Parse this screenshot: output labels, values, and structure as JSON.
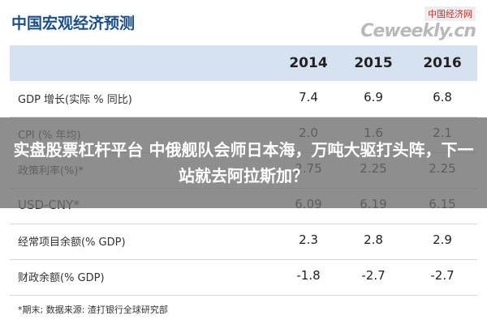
{
  "header": {
    "title": "中国宏观经济预测",
    "watermark_top": "中国经济网",
    "watermark": "Ceweekly.cn"
  },
  "table": {
    "columns": [
      "2014",
      "2015",
      "2016"
    ],
    "rows": [
      [
        "GDP 增长(实际 % 同比)",
        "7.4",
        "6.9",
        "6.8"
      ],
      [
        "CPI (% 年均)",
        "2.0",
        "1.6",
        "2.1"
      ],
      [
        "政策利率(%)*",
        "2.75",
        "2.25",
        "2.25"
      ],
      [
        "USD-CNY*",
        "6.09",
        "6.19",
        "6.15"
      ],
      [
        "经常项目余额(% GDP)",
        "2.3",
        "2.8",
        "2.9"
      ],
      [
        "财政余额(% GDP)",
        "-1.8",
        "-2.7",
        "-2.7"
      ]
    ]
  },
  "footnote": "*期末;   数据来源: 渣打银行全球研究部",
  "overlay": {
    "caption": "实盘股票杠杆平台 中俄舰队会师日本海，万吨大驱打头阵，下一站就去阿拉斯加？"
  }
}
